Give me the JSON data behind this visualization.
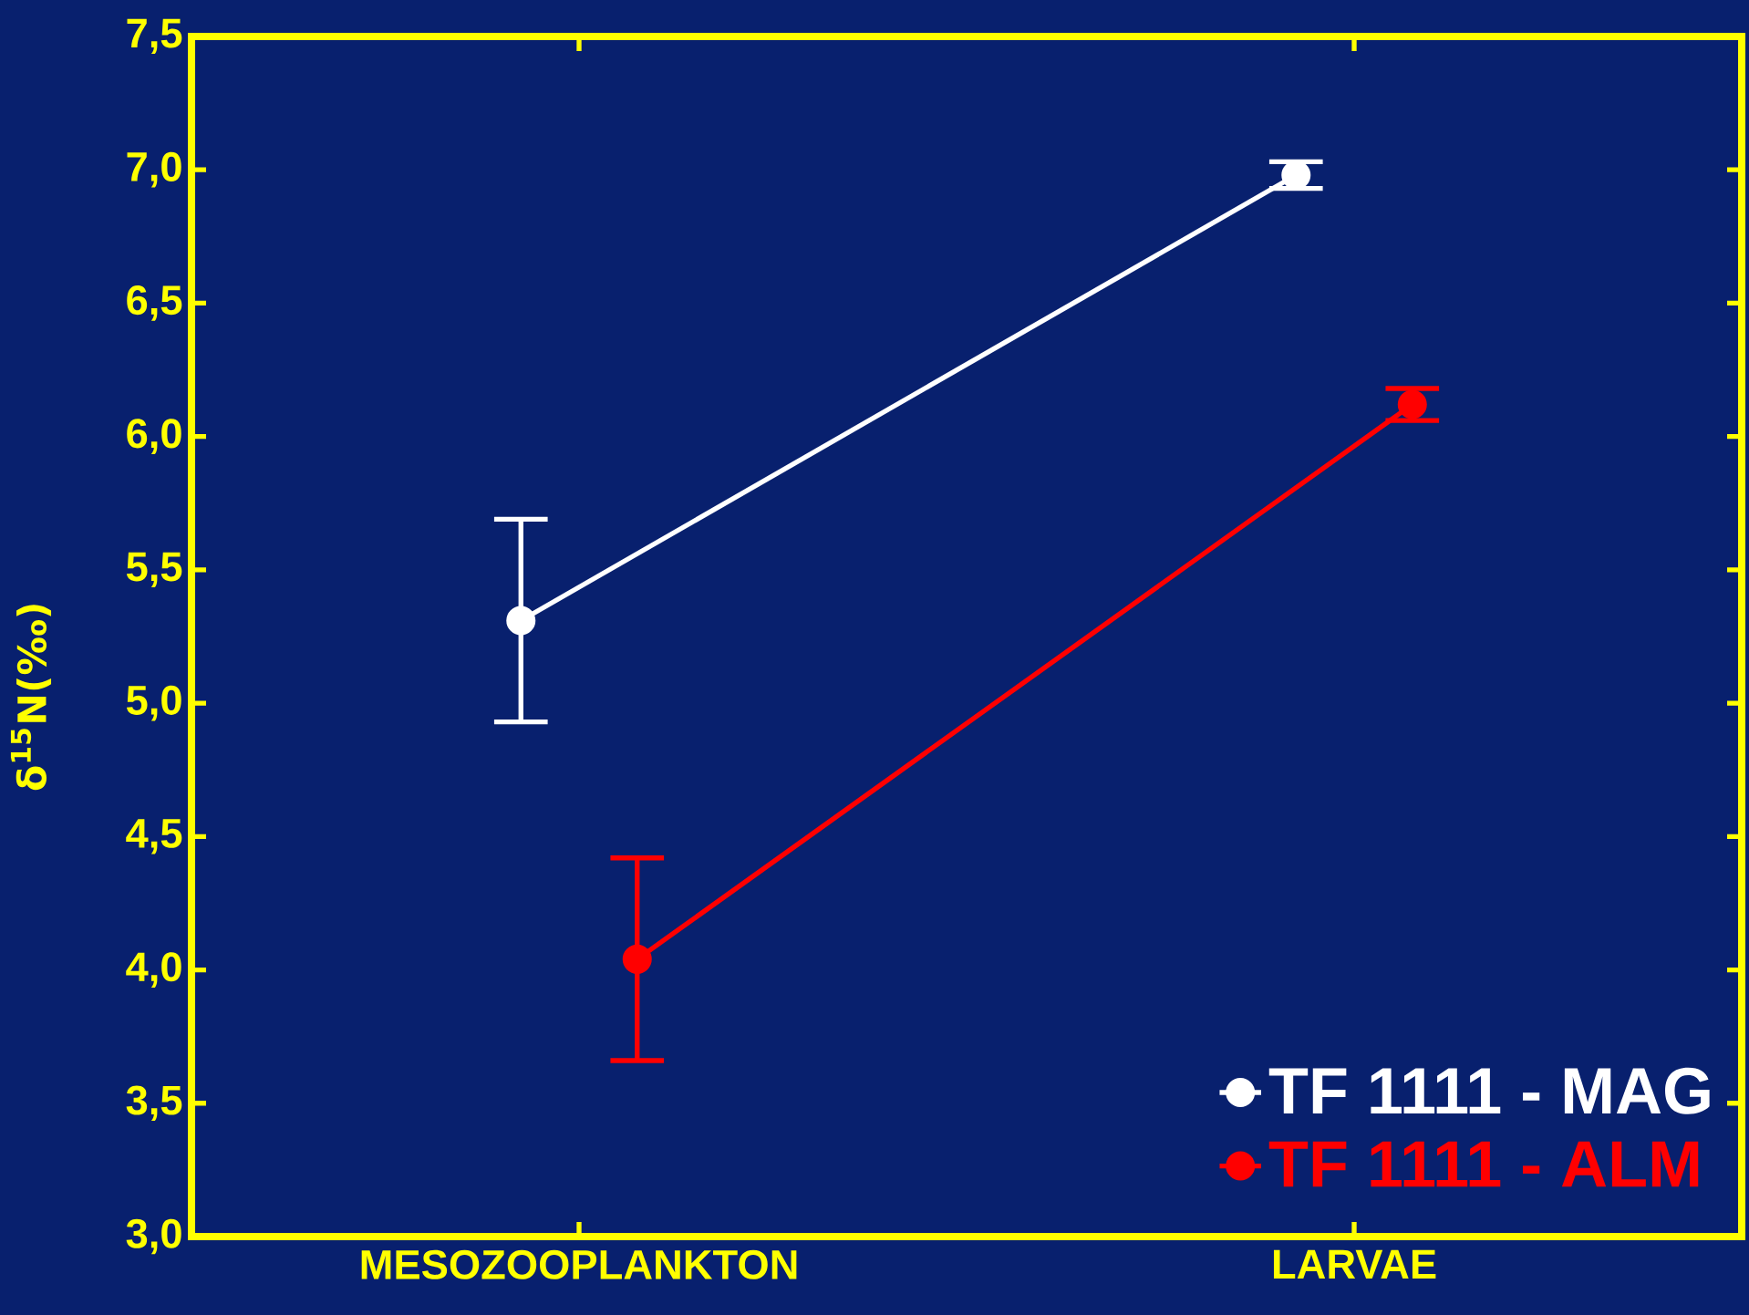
{
  "chart_data": {
    "type": "line",
    "ylabel": "δ$^{15}$N(‰)",
    "categories": [
      "MESOZOOPLANKTON",
      "LARVAE"
    ],
    "series": [
      {
        "name": "TF 1111 - MAG",
        "color": "#ffffff",
        "values": [
          5.31,
          6.98
        ],
        "errors": [
          0.38,
          0.05
        ]
      },
      {
        "name": "TF 1111 - ALM",
        "color": "#ff0000",
        "values": [
          4.04,
          6.12
        ],
        "errors": [
          0.38,
          0.06
        ]
      }
    ],
    "ylim": [
      3.0,
      7.5
    ],
    "yticks": [
      {
        "value": 3.0,
        "label": "3,0"
      },
      {
        "value": 3.5,
        "label": "3,5"
      },
      {
        "value": 4.0,
        "label": "4,0"
      },
      {
        "value": 4.5,
        "label": "4,5"
      },
      {
        "value": 5.0,
        "label": "5,0"
      },
      {
        "value": 5.5,
        "label": "5,5"
      },
      {
        "value": 6.0,
        "label": "6,0"
      },
      {
        "value": 6.5,
        "label": "6,5"
      },
      {
        "value": 7.0,
        "label": "7,0"
      },
      {
        "value": 7.5,
        "label": "7,5"
      }
    ],
    "grid": false,
    "legend": "bottom right",
    "marker": "circle",
    "line_style": "solid"
  }
}
